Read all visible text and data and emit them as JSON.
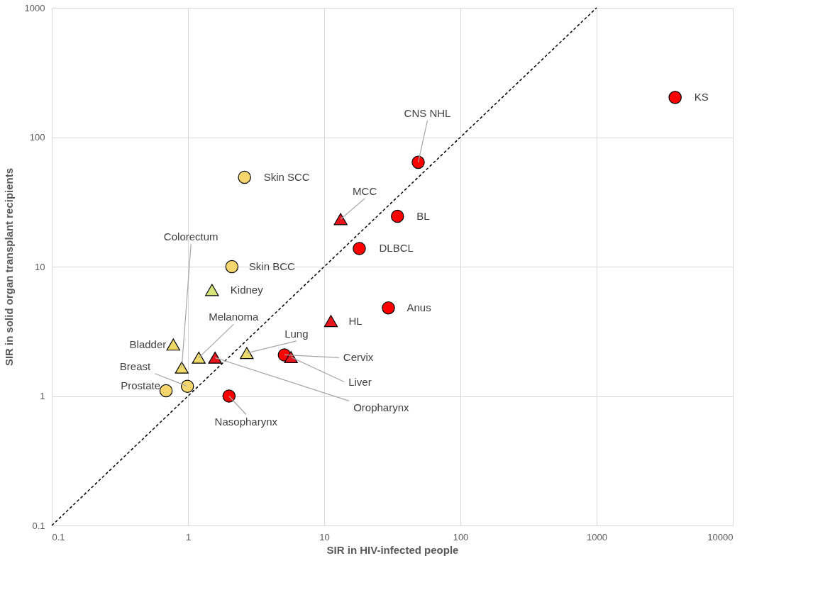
{
  "chart_data": {
    "type": "scatter",
    "xlabel": "SIR in HIV-infected people",
    "ylabel": "SIR in solid organ transplant recipients",
    "log": "xy",
    "grid": true,
    "xlim": [
      0.1,
      10000
    ],
    "xticks": [
      0.1,
      1,
      10,
      100,
      1000,
      10000
    ],
    "ylim": [
      0.1,
      1000
    ],
    "yticks": [
      0.1,
      1,
      10,
      100,
      1000
    ],
    "series": [
      {
        "type": "line",
        "line_style": "dashed",
        "marker": "none",
        "color": "#000000",
        "x": [
          0.1,
          1000
        ],
        "values": [
          0.1,
          1000
        ]
      },
      {
        "marker": "circle",
        "color": "#f7d66e",
        "x": [
          2.6,
          2.1,
          0.99,
          0.69
        ],
        "values": [
          49,
          10,
          1.19,
          1.1
        ]
      },
      {
        "marker": "triangle",
        "color": "#ecd96a",
        "x": [
          0.78,
          0.9,
          1.2,
          2.7
        ],
        "values": [
          2.5,
          1.66,
          1.98,
          2.15
        ]
      },
      {
        "marker": "triangle",
        "color": "#d6e57a",
        "x": [
          1.5
        ],
        "values": [
          6.6
        ]
      },
      {
        "marker": "circle",
        "color": "#ff0000",
        "x": [
          3770,
          49,
          34.5,
          18.1,
          29.6,
          5.1,
          2.0
        ],
        "values": [
          203,
          64,
          24.5,
          13.8,
          4.8,
          2.08,
          1.0
        ]
      },
      {
        "marker": "triangle",
        "color": "#e8141b",
        "x": [
          13.2,
          11.2,
          1.58,
          5.7
        ],
        "values": [
          23.3,
          3.8,
          1.98,
          2.0
        ]
      }
    ],
    "annotations": [
      {
        "text": "KS",
        "x": 3770,
        "y": 203
      },
      {
        "text": "CNS NHL",
        "x": 49,
        "y": 64
      },
      {
        "text": "Skin SCC",
        "x": 2.6,
        "y": 49
      },
      {
        "text": "MCC",
        "x": 13.2,
        "y": 23.3
      },
      {
        "text": "BL",
        "x": 34.5,
        "y": 24.5
      },
      {
        "text": "DLBCL",
        "x": 18.1,
        "y": 13.8
      },
      {
        "text": "Skin BCC",
        "x": 2.1,
        "y": 10
      },
      {
        "text": "Kidney",
        "x": 1.5,
        "y": 6.6
      },
      {
        "text": "Anus",
        "x": 29.6,
        "y": 4.8
      },
      {
        "text": "HL",
        "x": 11.2,
        "y": 3.8
      },
      {
        "text": "Bladder",
        "x": 0.78,
        "y": 2.5
      },
      {
        "text": "Colorectum",
        "x": 0.9,
        "y": 1.66
      },
      {
        "text": "Breast",
        "x": 0.99,
        "y": 1.19
      },
      {
        "text": "Prostate",
        "x": 0.69,
        "y": 1.1
      },
      {
        "text": "Melanoma",
        "x": 1.2,
        "y": 1.98
      },
      {
        "text": "Oropharynx",
        "x": 1.58,
        "y": 1.98
      },
      {
        "text": "Lung",
        "x": 2.7,
        "y": 2.15
      },
      {
        "text": "Cervix",
        "x": 5.1,
        "y": 2.08
      },
      {
        "text": "Liver",
        "x": 5.7,
        "y": 2.0
      },
      {
        "text": "Nasopharynx",
        "x": 2.0,
        "y": 1.0
      }
    ]
  }
}
